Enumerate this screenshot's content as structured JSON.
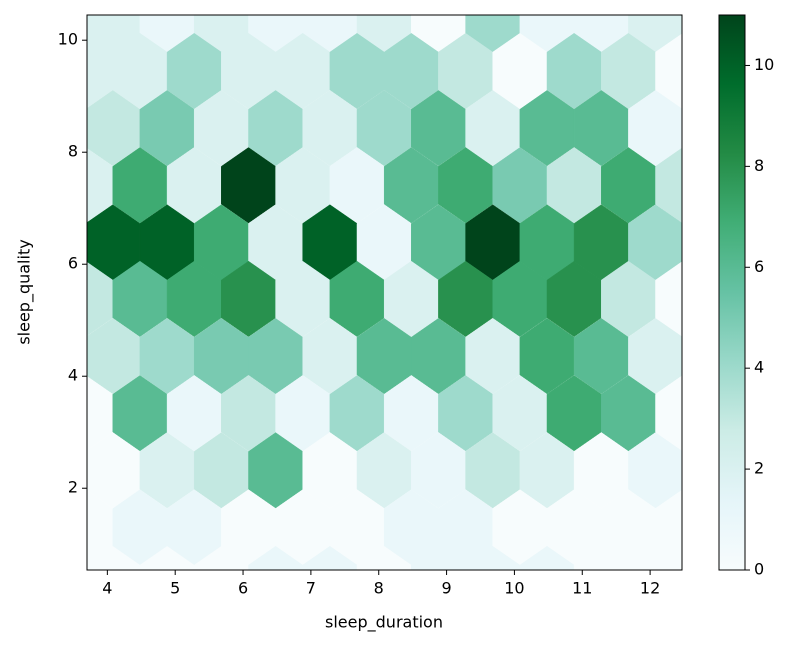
{
  "chart_data": {
    "type": "hexbin",
    "x_label": "sleep_duration",
    "y_label": "sleep_quality",
    "colormap": "BuGn",
    "xlim": [
      3.7,
      12.47
    ],
    "ylim": [
      0.54,
      10.45
    ],
    "xticks": [
      4,
      5,
      6,
      7,
      8,
      9,
      10,
      11,
      12
    ],
    "yticks": [
      2,
      4,
      6,
      8,
      10
    ],
    "clim": [
      0,
      11
    ],
    "cticks": [
      0,
      2,
      4,
      6,
      8,
      10
    ],
    "x": [
      4.08,
      4.88,
      5.68,
      6.48,
      7.28,
      8.08,
      8.88,
      9.68,
      10.48,
      11.28,
      12.08,
      3.68,
      4.48,
      5.28,
      6.08,
      6.88,
      7.68,
      8.48,
      9.28,
      10.08,
      10.88,
      11.68,
      12.48,
      4.08,
      4.88,
      5.68,
      6.48,
      7.28,
      8.08,
      8.88,
      9.68,
      10.48,
      11.28,
      12.08,
      3.68,
      4.48,
      5.28,
      6.08,
      6.88,
      7.68,
      8.48,
      9.28,
      10.08,
      10.88,
      11.68,
      12.48,
      4.08,
      4.88,
      5.68,
      6.48,
      7.28,
      8.08,
      8.88,
      9.68,
      10.48,
      11.28,
      12.08,
      3.68,
      4.48,
      5.28,
      6.08,
      6.88,
      7.68,
      8.48,
      9.28,
      10.08,
      10.88,
      11.68,
      12.48,
      4.08,
      4.88,
      5.68,
      6.48,
      7.28,
      8.08,
      8.88,
      9.68,
      10.48,
      11.28,
      12.08,
      3.68,
      4.48,
      5.28,
      6.08,
      6.88,
      7.68,
      8.48,
      9.28,
      10.08,
      10.88,
      11.68,
      12.48,
      4.08,
      4.88,
      5.68,
      6.48,
      7.28,
      8.08,
      8.88,
      9.68,
      10.48,
      11.28,
      12.08,
      3.68,
      4.48,
      5.28,
      6.08,
      6.88,
      7.68,
      8.48,
      9.28,
      10.08,
      10.88,
      11.68,
      12.48,
      4.08,
      4.88,
      5.68,
      6.48,
      7.28,
      8.08,
      8.88,
      9.68,
      10.48,
      11.28,
      12.08
    ],
    "y": [
      10.46,
      10.46,
      10.46,
      10.46,
      10.46,
      10.46,
      10.46,
      10.46,
      10.46,
      10.46,
      10.46,
      9.45,
      9.45,
      9.45,
      9.45,
      9.45,
      9.45,
      9.45,
      9.45,
      9.45,
      9.45,
      9.45,
      9.45,
      8.43,
      8.43,
      8.43,
      8.43,
      8.43,
      8.43,
      8.43,
      8.43,
      8.43,
      8.43,
      8.43,
      7.41,
      7.41,
      7.41,
      7.41,
      7.41,
      7.41,
      7.41,
      7.41,
      7.41,
      7.41,
      7.41,
      7.41,
      6.39,
      6.39,
      6.39,
      6.39,
      6.39,
      6.39,
      6.39,
      6.39,
      6.39,
      6.39,
      6.39,
      5.38,
      5.38,
      5.38,
      5.38,
      5.38,
      5.38,
      5.38,
      5.38,
      5.38,
      5.38,
      5.38,
      5.38,
      4.36,
      4.36,
      4.36,
      4.36,
      4.36,
      4.36,
      4.36,
      4.36,
      4.36,
      4.36,
      4.36,
      3.34,
      3.34,
      3.34,
      3.34,
      3.34,
      3.34,
      3.34,
      3.34,
      3.34,
      3.34,
      3.34,
      3.34,
      2.32,
      2.32,
      2.32,
      2.32,
      2.32,
      2.32,
      2.32,
      2.32,
      2.32,
      2.32,
      2.32,
      1.3,
      1.3,
      1.3,
      1.3,
      1.3,
      1.3,
      1.3,
      1.3,
      1.3,
      1.3,
      1.3,
      1.3,
      0.29,
      0.29,
      0.29,
      0.29,
      0.29,
      0.29,
      0.29,
      0.29,
      0.29,
      0.29,
      0.29
    ],
    "values": [
      2,
      1,
      2,
      1,
      1,
      2,
      0,
      4,
      1,
      1,
      2,
      2,
      2,
      4,
      2,
      2,
      4,
      4,
      3,
      0,
      4,
      3,
      0,
      3,
      5,
      2,
      4,
      2,
      4,
      6,
      2,
      6,
      6,
      1,
      2,
      7,
      2,
      11,
      2,
      1,
      6,
      7,
      5,
      3,
      7,
      3,
      10,
      10,
      7,
      2,
      10,
      1,
      6,
      11,
      7,
      8,
      4,
      3,
      6,
      7,
      8,
      2,
      7,
      2,
      8,
      7,
      8,
      3,
      0,
      3,
      4,
      5,
      5,
      2,
      6,
      6,
      2,
      7,
      6,
      2,
      0,
      6,
      1,
      3,
      1,
      4,
      1,
      4,
      2,
      7,
      6,
      0,
      0,
      2,
      3,
      6,
      0,
      2,
      1,
      3,
      2,
      0,
      1,
      0,
      1,
      1,
      0,
      0,
      0,
      1,
      1,
      0,
      0,
      0,
      0,
      0,
      0,
      0,
      1,
      1,
      0,
      1,
      1,
      1,
      0,
      0
    ]
  }
}
